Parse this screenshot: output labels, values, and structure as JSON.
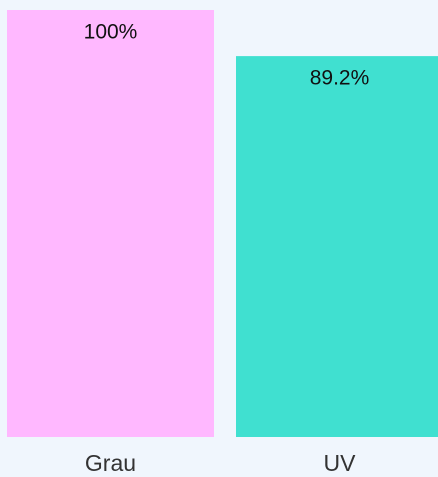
{
  "chart_data": {
    "type": "bar",
    "categories": [
      "Grau",
      "UV"
    ],
    "values": [
      100,
      89.2
    ],
    "value_labels": [
      "100%",
      "89.2%"
    ],
    "colors": [
      "#ffb8ff",
      "#40e0d0"
    ],
    "ylim": [
      0,
      100
    ]
  }
}
